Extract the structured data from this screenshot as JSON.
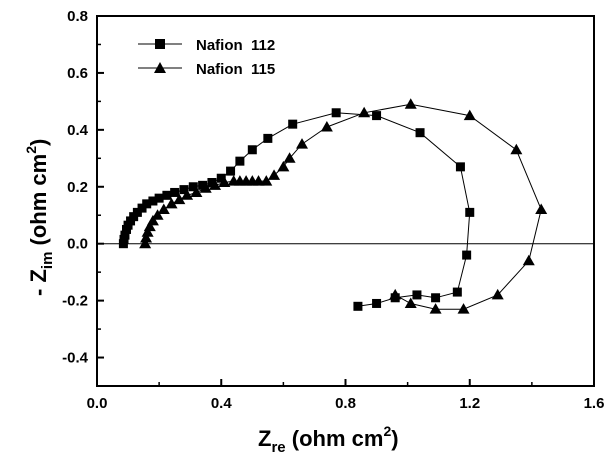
{
  "chart_data": {
    "type": "scatter",
    "title": "",
    "xlabel": {
      "main": "Z",
      "sub": "re",
      "unit": " (ohm cm",
      "sup": "2",
      "close": ")"
    },
    "ylabel": {
      "prefix": "- ",
      "main": "Z",
      "sub": "im",
      "unit": " (ohm cm",
      "sup": "2",
      "close": ")"
    },
    "xlim": [
      0.0,
      1.6
    ],
    "ylim": [
      -0.5,
      0.8
    ],
    "xticks": [
      "0.0",
      "0.4",
      "0.8",
      "1.2",
      "1.6"
    ],
    "yticks": [
      "-0.4",
      "-0.2",
      "0.0",
      "0.2",
      "0.4",
      "0.6",
      "0.8"
    ],
    "grid": false,
    "zero_line": true,
    "legend_position": "top-left",
    "series": [
      {
        "name": "Nafion  112",
        "marker": "square",
        "points": [
          [
            0.085,
            0.0
          ],
          [
            0.087,
            0.015
          ],
          [
            0.09,
            0.03
          ],
          [
            0.095,
            0.05
          ],
          [
            0.1,
            0.065
          ],
          [
            0.108,
            0.08
          ],
          [
            0.118,
            0.095
          ],
          [
            0.13,
            0.11
          ],
          [
            0.145,
            0.125
          ],
          [
            0.16,
            0.14
          ],
          [
            0.18,
            0.15
          ],
          [
            0.2,
            0.16
          ],
          [
            0.225,
            0.17
          ],
          [
            0.25,
            0.18
          ],
          [
            0.28,
            0.19
          ],
          [
            0.31,
            0.2
          ],
          [
            0.34,
            0.205
          ],
          [
            0.37,
            0.215
          ],
          [
            0.4,
            0.23
          ],
          [
            0.43,
            0.255
          ],
          [
            0.46,
            0.29
          ],
          [
            0.5,
            0.33
          ],
          [
            0.55,
            0.37
          ],
          [
            0.63,
            0.42
          ],
          [
            0.77,
            0.46
          ],
          [
            0.9,
            0.45
          ],
          [
            1.04,
            0.39
          ],
          [
            1.17,
            0.27
          ],
          [
            1.2,
            0.11
          ],
          [
            1.19,
            -0.04
          ],
          [
            1.16,
            -0.17
          ],
          [
            1.09,
            -0.19
          ],
          [
            1.03,
            -0.18
          ],
          [
            0.96,
            -0.19
          ],
          [
            0.9,
            -0.21
          ],
          [
            0.84,
            -0.22
          ]
        ]
      },
      {
        "name": "Nafion  115",
        "marker": "triangle",
        "points": [
          [
            0.155,
            0.0
          ],
          [
            0.158,
            0.02
          ],
          [
            0.163,
            0.04
          ],
          [
            0.17,
            0.06
          ],
          [
            0.18,
            0.08
          ],
          [
            0.195,
            0.1
          ],
          [
            0.215,
            0.12
          ],
          [
            0.24,
            0.14
          ],
          [
            0.265,
            0.155
          ],
          [
            0.29,
            0.17
          ],
          [
            0.32,
            0.18
          ],
          [
            0.35,
            0.195
          ],
          [
            0.38,
            0.205
          ],
          [
            0.41,
            0.215
          ],
          [
            0.44,
            0.22
          ],
          [
            0.46,
            0.22
          ],
          [
            0.48,
            0.22
          ],
          [
            0.5,
            0.22
          ],
          [
            0.52,
            0.22
          ],
          [
            0.545,
            0.22
          ],
          [
            0.57,
            0.24
          ],
          [
            0.6,
            0.27
          ],
          [
            0.62,
            0.3
          ],
          [
            0.66,
            0.35
          ],
          [
            0.74,
            0.41
          ],
          [
            0.86,
            0.46
          ],
          [
            1.01,
            0.49
          ],
          [
            1.2,
            0.45
          ],
          [
            1.35,
            0.33
          ],
          [
            1.43,
            0.12
          ],
          [
            1.39,
            -0.06
          ],
          [
            1.29,
            -0.18
          ],
          [
            1.18,
            -0.23
          ],
          [
            1.09,
            -0.23
          ],
          [
            1.01,
            -0.21
          ],
          [
            0.96,
            -0.18
          ]
        ]
      }
    ]
  }
}
